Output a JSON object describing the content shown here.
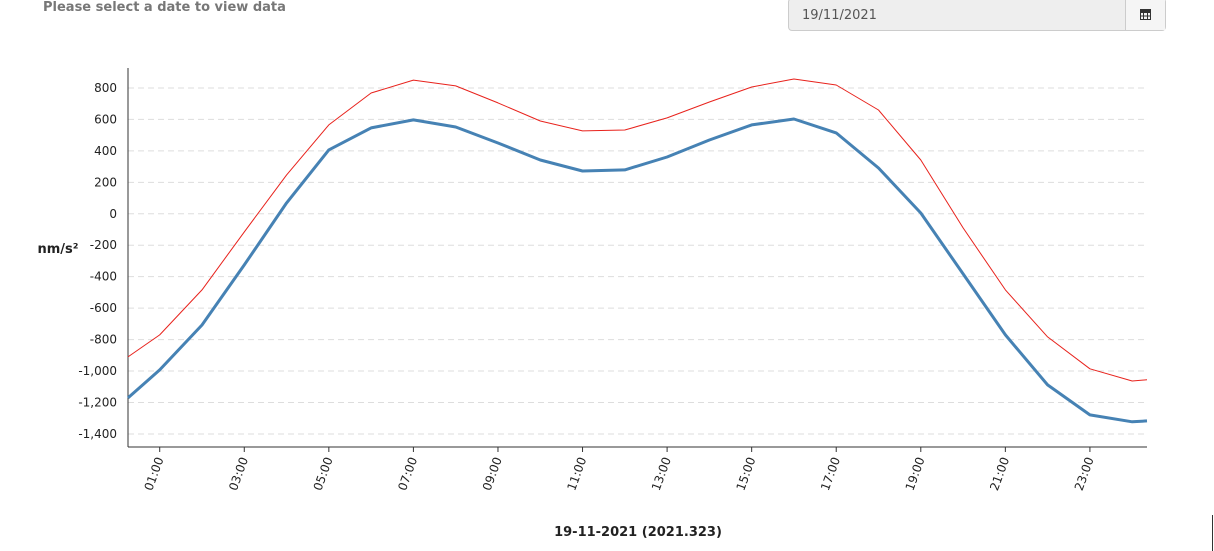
{
  "header": {
    "prompt": "Please select a date to view data",
    "date": "19/11/2021"
  },
  "chart_data": {
    "type": "line",
    "y_label": "nm/s²",
    "x_label": "19-11-2021 (2021.323)",
    "x": [
      0.25,
      1,
      2,
      3,
      4,
      5,
      6,
      7,
      8,
      9,
      10,
      11,
      12,
      13,
      14,
      15,
      16,
      17,
      18,
      19,
      20,
      21,
      22,
      23,
      24,
      24.35
    ],
    "series": [
      {
        "color": "#e8221c",
        "values": [
          -910,
          -770,
          -484,
          -115,
          247,
          565,
          768,
          850,
          813,
          705,
          590,
          527,
          533,
          610,
          711,
          806,
          857,
          819,
          660,
          342,
          -90,
          -484,
          -783,
          -986,
          -1063,
          -1056
        ]
      },
      {
        "color": "#4682b4",
        "values": [
          -1171,
          -993,
          -707,
          -325,
          69,
          406,
          546,
          597,
          552,
          450,
          342,
          272,
          279,
          361,
          469,
          565,
          603,
          514,
          291,
          5,
          -382,
          -770,
          -1088,
          -1279,
          -1323,
          -1317
        ]
      }
    ],
    "xlim": [
      0.25,
      24.35
    ],
    "xticks": [
      {
        "value": 1,
        "label": "01:00"
      },
      {
        "value": 3,
        "label": "03:00"
      },
      {
        "value": 5,
        "label": "05:00"
      },
      {
        "value": 7,
        "label": "07:00"
      },
      {
        "value": 9,
        "label": "09:00"
      },
      {
        "value": 11,
        "label": "11:00"
      },
      {
        "value": 13,
        "label": "13:00"
      },
      {
        "value": 15,
        "label": "15:00"
      },
      {
        "value": 17,
        "label": "17:00"
      },
      {
        "value": 19,
        "label": "19:00"
      },
      {
        "value": 21,
        "label": "21:00"
      },
      {
        "value": 23,
        "label": "23:00"
      }
    ],
    "ylim": [
      -1483,
      927
    ],
    "yticks": [
      800,
      600,
      400,
      200,
      0,
      -200,
      -400,
      -600,
      -800,
      {
        "value": -1000,
        "label": "-1,000"
      },
      {
        "value": -1200,
        "label": "-1,200"
      },
      {
        "value": -1400,
        "label": "-1,400"
      }
    ],
    "grid": true
  }
}
